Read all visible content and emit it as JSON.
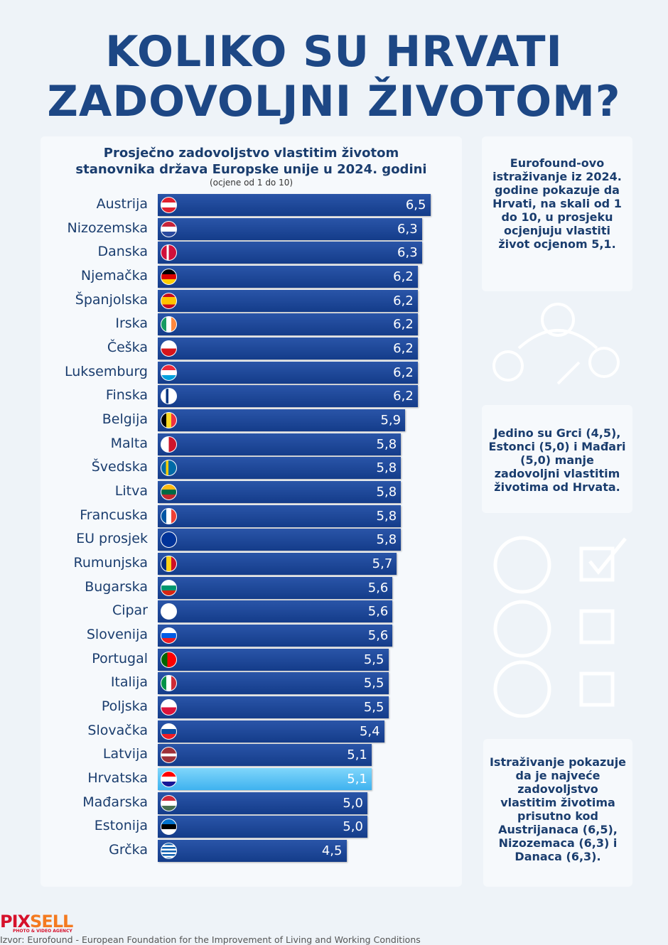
{
  "title": [
    "KOLIKO SU HRVATI",
    "ZADOVOLJNI ŽIVOTOM?"
  ],
  "chart_data": {
    "type": "bar",
    "orientation": "horizontal",
    "title": "Prosječno zadovoljstvo vlastitim životom stanovnika država Europske unije u 2024. godini",
    "title_lines": [
      "Prosječno zadovoljstvo vlastitim životom",
      "stanovnika država Europske unije u 2024. godini"
    ],
    "subtitle": "(ocjene od 1 do 10)",
    "categories": [
      "Austrija",
      "Nizozemska",
      "Danska",
      "Njemačka",
      "Španjolska",
      "Irska",
      "Češka",
      "Luksemburg",
      "Finska",
      "Belgija",
      "Malta",
      "Švedska",
      "Litva",
      "Francuska",
      "EU prosjek",
      "Rumunjska",
      "Bugarska",
      "Cipar",
      "Slovenija",
      "Portugal",
      "Italija",
      "Poljska",
      "Slovačka",
      "Latvija",
      "Hrvatska",
      "Mađarska",
      "Estonija",
      "Grčka"
    ],
    "values": [
      6.5,
      6.3,
      6.3,
      6.2,
      6.2,
      6.2,
      6.2,
      6.2,
      6.2,
      5.9,
      5.8,
      5.8,
      5.8,
      5.8,
      5.8,
      5.7,
      5.6,
      5.6,
      5.6,
      5.5,
      5.5,
      5.5,
      5.4,
      5.1,
      5.1,
      5.0,
      5.0,
      4.5
    ],
    "value_labels": [
      "6,5",
      "6,3",
      "6,3",
      "6,2",
      "6,2",
      "6,2",
      "6,2",
      "6,2",
      "6,2",
      "5,9",
      "5,8",
      "5,8",
      "5,8",
      "5,8",
      "5,8",
      "5,7",
      "5,6",
      "5,6",
      "5,6",
      "5,5",
      "5,5",
      "5,5",
      "5,4",
      "5,1",
      "5,1",
      "5,0",
      "5,0",
      "4,5"
    ],
    "highlight": "Hrvatska",
    "colors": {
      "bar": "#1d4a9e",
      "highlight": "#4dbdf3"
    },
    "xlim": [
      0,
      10
    ]
  },
  "boxes": [
    "Eurofound-ovo istraživanje iz 2024. godine pokazuje da Hrvati, na skali od 1 do 10,  u prosjeku ocjenjuju vlastiti život ocjenom 5,1.",
    "Jedino su Grci (4,5), Estonci (5,0) i Mađari (5,0) manje zadovoljni vlastitim životima od Hrvata.",
    "Istraživanje pokazuje da je najveće zadovoljstvo vlastitim životima prisutno kod Austrijanaca (6,5), Nizozemaca (6,3) i Danaca (6,3)."
  ],
  "logo": "PIXSELL",
  "logo_tag": "PHOTO & VIDEO AGENCY",
  "source": "Izvor: Eurofound - European Foundation for the Improvement of Living and Working Conditions"
}
